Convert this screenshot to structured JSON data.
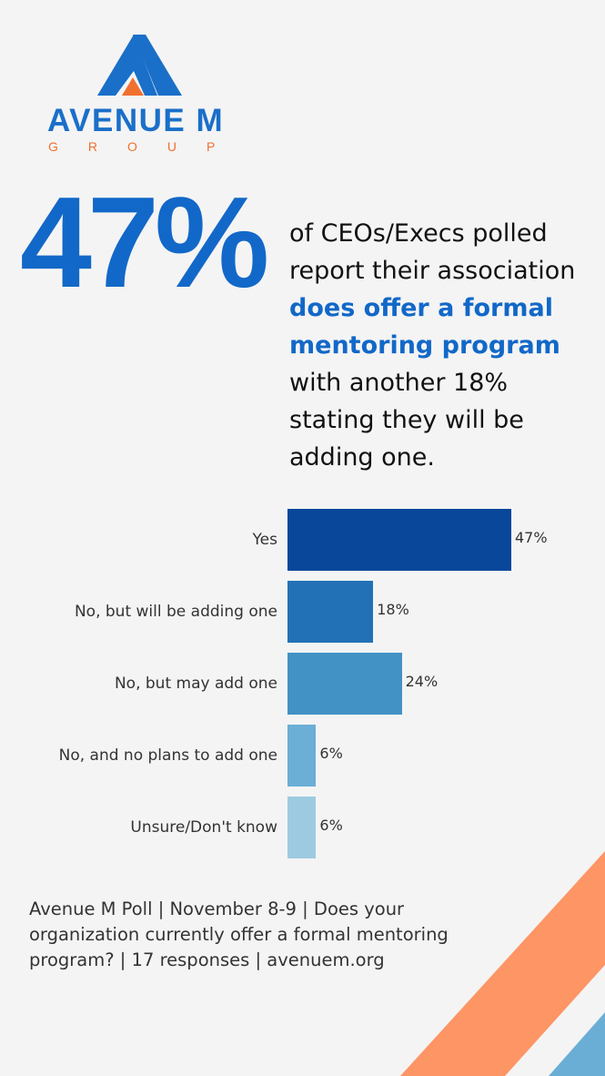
{
  "logo": {
    "name": "AVENUE M",
    "sub": "GROUP"
  },
  "headline": {
    "stat": "47%",
    "text_before": "of CEOs/Execs polled report their association ",
    "highlight": "does offer a formal mentoring program",
    "text_after": " with another 18% stating they will be adding one."
  },
  "chart_data": {
    "type": "bar",
    "orientation": "horizontal",
    "categories": [
      "Yes",
      "No, but will be adding one",
      "No, but may add one",
      "No, and no plans to add one",
      "Unsure/Don't know"
    ],
    "values": [
      47,
      18,
      24,
      6,
      6
    ],
    "labels": [
      "47%",
      "18%",
      "24%",
      "6%",
      "6%"
    ],
    "colors": [
      "#08479a",
      "#2271b6",
      "#4292c6",
      "#6baed6",
      "#9ecae1"
    ],
    "grid": false
  },
  "footer": "Avenue M Poll | November 8-9 | Does your organization currently offer a formal mentoring program? | 17 responses | avenuem.org",
  "colors": {
    "brand_blue": "#1268c8",
    "brand_orange": "#f07030",
    "stripe_orange": "#fe9565",
    "stripe_blue": "#6aaed6"
  }
}
